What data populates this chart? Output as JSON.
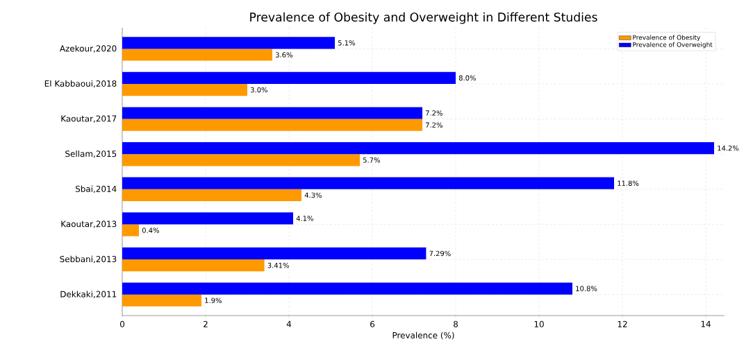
{
  "chart_data": {
    "type": "bar",
    "orientation": "horizontal",
    "title": "Prevalence of Obesity and Overweight in Different Studies",
    "xlabel": "Prevalence (%)",
    "categories": [
      "Azekour,2020",
      "El Kabbaoui,2018",
      "Kaoutar,2017",
      "Sellam,2015",
      "Sbai,2014",
      "Kaoutar,2013",
      "Sebbani,2013",
      "Dekkaki,2011"
    ],
    "series": [
      {
        "name": "Prevalence of Obesity",
        "color": "#ff9900",
        "values": [
          3.6,
          3.0,
          7.2,
          5.7,
          4.3,
          0.4,
          3.41,
          1.9
        ],
        "value_labels": [
          "3.6%",
          "3.0%",
          "7.2%",
          "5.7%",
          "4.3%",
          "0.4%",
          "3.41%",
          "1.9%"
        ]
      },
      {
        "name": "Prevalence of Overweight",
        "color": "#0000ff",
        "values": [
          5.1,
          8.0,
          7.2,
          14.2,
          11.8,
          4.1,
          7.29,
          10.8
        ],
        "value_labels": [
          "5.1%",
          "8.0%",
          "7.2%",
          "14.2%",
          "11.8%",
          "4.1%",
          "7.29%",
          "10.8%"
        ]
      }
    ],
    "xlim": [
      0,
      14.45
    ],
    "xticks": [
      0,
      2,
      4,
      6,
      8,
      10,
      12,
      14
    ],
    "grid": true,
    "legend": "top right"
  }
}
